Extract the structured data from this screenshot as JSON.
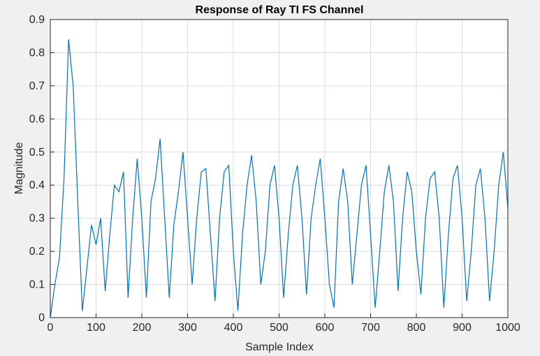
{
  "chart_data": {
    "type": "line",
    "title": "Response of Ray TI FS Channel",
    "xlabel": "Sample Index",
    "ylabel": "Magnitude",
    "x": [
      0,
      10,
      20,
      30,
      40,
      50,
      60,
      70,
      80,
      90,
      100,
      110,
      120,
      130,
      140,
      150,
      160,
      170,
      180,
      190,
      200,
      210,
      220,
      230,
      240,
      250,
      260,
      270,
      280,
      290,
      300,
      310,
      320,
      330,
      340,
      350,
      360,
      370,
      380,
      390,
      400,
      410,
      420,
      430,
      440,
      450,
      460,
      470,
      480,
      490,
      500,
      510,
      520,
      530,
      540,
      550,
      560,
      570,
      580,
      590,
      600,
      610,
      620,
      630,
      640,
      650,
      660,
      670,
      680,
      690,
      700,
      710,
      720,
      730,
      740,
      750,
      760,
      770,
      780,
      790,
      800,
      810,
      820,
      830,
      840,
      850,
      860,
      870,
      880,
      890,
      900,
      910,
      920,
      930,
      940,
      950,
      960,
      970,
      980,
      990,
      1000
    ],
    "series": [
      {
        "name": "Magnitude",
        "color": "#0072bd",
        "values": [
          0.0,
          0.1,
          0.18,
          0.42,
          0.84,
          0.7,
          0.35,
          0.02,
          0.15,
          0.28,
          0.22,
          0.3,
          0.08,
          0.25,
          0.4,
          0.38,
          0.44,
          0.06,
          0.3,
          0.48,
          0.3,
          0.06,
          0.35,
          0.42,
          0.54,
          0.3,
          0.06,
          0.28,
          0.38,
          0.5,
          0.3,
          0.1,
          0.3,
          0.44,
          0.45,
          0.25,
          0.05,
          0.3,
          0.44,
          0.46,
          0.2,
          0.02,
          0.25,
          0.4,
          0.49,
          0.35,
          0.1,
          0.2,
          0.4,
          0.46,
          0.3,
          0.06,
          0.25,
          0.4,
          0.46,
          0.3,
          0.07,
          0.3,
          0.4,
          0.48,
          0.3,
          0.1,
          0.03,
          0.35,
          0.45,
          0.35,
          0.1,
          0.25,
          0.4,
          0.46,
          0.25,
          0.03,
          0.2,
          0.38,
          0.46,
          0.35,
          0.08,
          0.3,
          0.44,
          0.38,
          0.2,
          0.07,
          0.3,
          0.42,
          0.44,
          0.3,
          0.03,
          0.25,
          0.42,
          0.46,
          0.3,
          0.05,
          0.2,
          0.4,
          0.45,
          0.3,
          0.05,
          0.2,
          0.4,
          0.5,
          0.33
        ]
      }
    ],
    "xlim": [
      0,
      1000
    ],
    "xticks": [
      0,
      100,
      200,
      300,
      400,
      500,
      600,
      700,
      800,
      900,
      1000
    ],
    "ylim": [
      0,
      0.9
    ],
    "yticks": [
      0,
      0.1,
      0.2,
      0.3,
      0.4,
      0.5,
      0.6,
      0.7,
      0.8,
      0.9
    ],
    "grid": true
  }
}
